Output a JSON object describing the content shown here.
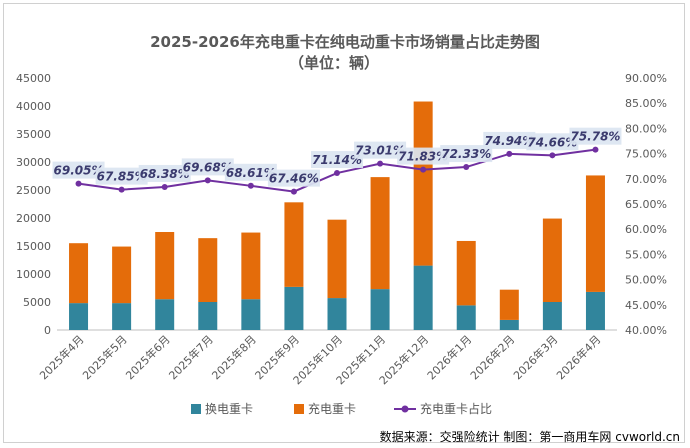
{
  "chart_data": {
    "type": "bar",
    "stacked": true,
    "title": "2025-2026年充电重卡在纯电动重卡市场销量占比走势图",
    "subtitle": "（单位：辆）",
    "categories": [
      "2025年4月",
      "2025年5月",
      "2025年6月",
      "2025年7月",
      "2025年8月",
      "2025年9月",
      "2025年10月",
      "2025年11月",
      "2025年12月",
      "2026年1月",
      "2026年2月",
      "2026年3月",
      "2026年4月"
    ],
    "series": [
      {
        "name": "换电重卡",
        "type": "bar",
        "axis": "left",
        "color": "#31859c",
        "values": [
          4800,
          4800,
          5500,
          5000,
          5500,
          7700,
          5700,
          7300,
          11500,
          4400,
          1800,
          5000,
          6800
        ]
      },
      {
        "name": "充电重卡",
        "type": "bar",
        "axis": "left",
        "color": "#e46c0a",
        "values": [
          10700,
          10100,
          12000,
          11400,
          11900,
          15100,
          14000,
          20000,
          29300,
          11500,
          5400,
          14900,
          20800
        ]
      },
      {
        "name": "充电重卡占比",
        "type": "line",
        "axis": "right",
        "color": "#7030a0",
        "values": [
          69.05,
          67.85,
          68.38,
          69.68,
          68.61,
          67.46,
          71.14,
          73.01,
          71.83,
          72.33,
          74.94,
          74.66,
          75.78
        ],
        "labels": [
          "69.05%",
          "67.85%",
          "68.38%",
          "69.68%",
          "68.61%",
          "67.46%",
          "71.14%",
          "73.01%",
          "71.83%",
          "72.33%",
          "74.94%",
          "74.66%",
          "75.78%"
        ]
      }
    ],
    "y_left": {
      "min": 0,
      "max": 45000,
      "ticks": [
        "0",
        "5000",
        "10000",
        "15000",
        "20000",
        "25000",
        "30000",
        "35000",
        "40000",
        "45000"
      ]
    },
    "y_right": {
      "min": 40,
      "max": 90,
      "ticks": [
        "40.00%",
        "45.00%",
        "50.00%",
        "55.00%",
        "60.00%",
        "65.00%",
        "70.00%",
        "75.00%",
        "80.00%",
        "85.00%",
        "90.00%"
      ]
    },
    "grid": false,
    "legend": "bottom",
    "source": "数据来源：交强险统计  制图：第一商用车网 cvworld.cn"
  }
}
